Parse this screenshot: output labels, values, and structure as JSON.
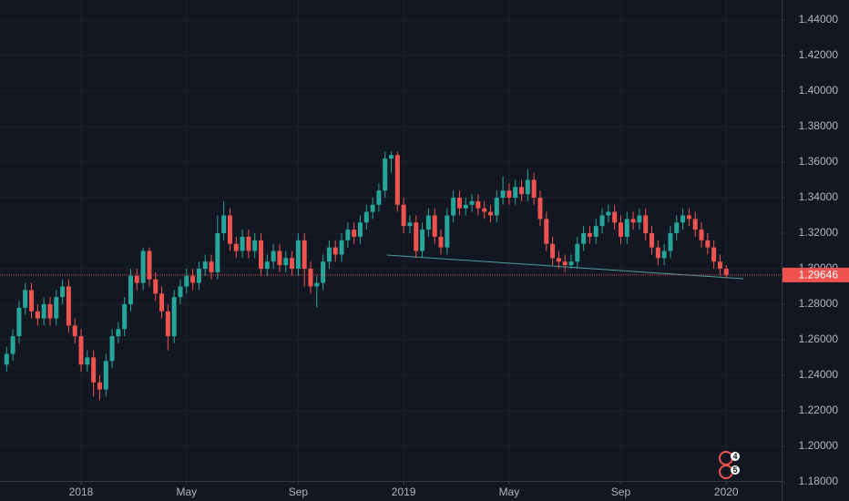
{
  "chart_data": {
    "type": "candlestick",
    "categories": [
      null,
      null,
      null,
      null,
      null,
      null,
      null,
      null,
      null,
      null,
      null,
      null,
      "2018",
      null,
      null,
      null,
      null,
      null,
      null,
      null,
      null,
      null,
      null,
      null,
      null,
      null,
      null,
      null,
      null,
      "May",
      null,
      null,
      null,
      null,
      null,
      null,
      null,
      null,
      null,
      null,
      null,
      null,
      null,
      null,
      null,
      null,
      null,
      "Sep",
      null,
      null,
      null,
      null,
      null,
      null,
      null,
      null,
      null,
      null,
      null,
      null,
      null,
      null,
      null,
      null,
      "2019",
      null,
      null,
      null,
      null,
      null,
      null,
      null,
      null,
      null,
      null,
      null,
      null,
      null,
      null,
      null,
      null,
      "May",
      null,
      null,
      null,
      null,
      null,
      null,
      null,
      null,
      null,
      null,
      null,
      null,
      null,
      null,
      null,
      null,
      null,
      "Sep",
      null,
      null,
      null,
      null,
      null,
      null,
      null,
      null,
      null,
      null,
      null,
      null,
      null,
      null,
      null,
      null,
      "2020"
    ],
    "open": [
      1.246,
      1.252,
      1.262,
      1.278,
      1.288,
      1.276,
      1.272,
      1.28,
      1.272,
      1.284,
      1.29,
      1.268,
      1.262,
      1.246,
      1.25,
      1.236,
      1.232,
      1.248,
      1.262,
      1.266,
      1.28,
      1.296,
      1.292,
      1.31,
      1.294,
      1.286,
      1.276,
      1.262,
      1.284,
      1.29,
      1.296,
      1.292,
      1.3,
      1.304,
      1.298,
      1.32,
      1.33,
      1.314,
      1.31,
      1.318,
      1.31,
      1.316,
      1.3,
      1.304,
      1.31,
      1.302,
      1.306,
      1.3,
      1.316,
      1.3,
      1.29,
      1.292,
      1.304,
      1.312,
      1.308,
      1.316,
      1.322,
      1.318,
      1.326,
      1.332,
      1.336,
      1.344,
      1.362,
      1.364,
      1.336,
      1.324,
      1.326,
      1.31,
      1.322,
      1.33,
      1.318,
      1.312,
      1.33,
      1.34,
      1.334,
      1.336,
      1.338,
      1.334,
      1.332,
      1.33,
      1.34,
      1.344,
      1.34,
      1.346,
      1.342,
      1.35,
      1.34,
      1.328,
      1.314,
      1.306,
      1.304,
      1.302,
      1.304,
      1.314,
      1.32,
      1.318,
      1.324,
      1.33,
      1.332,
      1.326,
      1.318,
      1.328,
      1.326,
      1.33,
      1.32,
      1.312,
      1.306,
      1.31,
      1.32,
      1.326,
      1.33,
      1.328,
      1.322,
      1.316,
      1.312,
      1.304,
      1.3
    ],
    "high": [
      1.256,
      1.266,
      1.282,
      1.292,
      1.292,
      1.28,
      1.284,
      1.284,
      1.288,
      1.294,
      1.294,
      1.272,
      1.266,
      1.254,
      1.254,
      1.24,
      1.252,
      1.266,
      1.27,
      1.284,
      1.3,
      1.3,
      1.312,
      1.312,
      1.298,
      1.29,
      1.28,
      1.288,
      1.294,
      1.3,
      1.3,
      1.304,
      1.308,
      1.308,
      1.33,
      1.338,
      1.334,
      1.318,
      1.322,
      1.322,
      1.32,
      1.32,
      1.308,
      1.314,
      1.314,
      1.31,
      1.31,
      1.32,
      1.32,
      1.304,
      1.296,
      1.308,
      1.316,
      1.316,
      1.32,
      1.326,
      1.326,
      1.33,
      1.336,
      1.34,
      1.348,
      1.366,
      1.366,
      1.366,
      1.34,
      1.33,
      1.33,
      1.326,
      1.334,
      1.334,
      1.322,
      1.334,
      1.344,
      1.344,
      1.34,
      1.342,
      1.342,
      1.338,
      1.336,
      1.344,
      1.352,
      1.348,
      1.35,
      1.35,
      1.356,
      1.354,
      1.344,
      1.332,
      1.318,
      1.31,
      1.308,
      1.308,
      1.318,
      1.324,
      1.324,
      1.328,
      1.334,
      1.336,
      1.336,
      1.33,
      1.332,
      1.332,
      1.334,
      1.334,
      1.324,
      1.316,
      1.314,
      1.324,
      1.33,
      1.334,
      1.334,
      1.332,
      1.326,
      1.32,
      1.316,
      1.308,
      1.302
    ],
    "low": [
      1.242,
      1.248,
      1.258,
      1.274,
      1.272,
      1.268,
      1.268,
      1.268,
      1.268,
      1.28,
      1.264,
      1.258,
      1.242,
      1.242,
      1.228,
      1.226,
      1.228,
      1.244,
      1.258,
      1.262,
      1.276,
      1.288,
      1.288,
      1.29,
      1.282,
      1.272,
      1.254,
      1.258,
      1.28,
      1.286,
      1.288,
      1.288,
      1.296,
      1.294,
      1.294,
      1.316,
      1.31,
      1.306,
      1.306,
      1.306,
      1.306,
      1.296,
      1.296,
      1.3,
      1.298,
      1.298,
      1.296,
      1.296,
      1.29,
      1.286,
      1.278,
      1.288,
      1.3,
      1.304,
      1.304,
      1.312,
      1.314,
      1.314,
      1.322,
      1.328,
      1.332,
      1.34,
      1.354,
      1.332,
      1.32,
      1.32,
      1.306,
      1.306,
      1.318,
      1.314,
      1.308,
      1.308,
      1.326,
      1.33,
      1.33,
      1.332,
      1.33,
      1.328,
      1.326,
      1.326,
      1.336,
      1.336,
      1.336,
      1.338,
      1.338,
      1.336,
      1.324,
      1.31,
      1.302,
      1.3,
      1.298,
      1.3,
      1.3,
      1.31,
      1.314,
      1.314,
      1.32,
      1.326,
      1.322,
      1.314,
      1.314,
      1.322,
      1.322,
      1.316,
      1.308,
      1.302,
      1.302,
      1.306,
      1.316,
      1.322,
      1.324,
      1.318,
      1.312,
      1.308,
      1.3,
      1.296,
      1.2945
    ],
    "close": [
      1.252,
      1.262,
      1.278,
      1.288,
      1.276,
      1.272,
      1.28,
      1.272,
      1.284,
      1.29,
      1.268,
      1.262,
      1.246,
      1.25,
      1.236,
      1.232,
      1.248,
      1.262,
      1.266,
      1.28,
      1.296,
      1.292,
      1.31,
      1.294,
      1.286,
      1.276,
      1.262,
      1.284,
      1.29,
      1.296,
      1.292,
      1.3,
      1.304,
      1.298,
      1.32,
      1.33,
      1.314,
      1.31,
      1.318,
      1.31,
      1.316,
      1.3,
      1.304,
      1.31,
      1.302,
      1.306,
      1.3,
      1.316,
      1.3,
      1.29,
      1.292,
      1.304,
      1.312,
      1.308,
      1.316,
      1.322,
      1.318,
      1.326,
      1.332,
      1.336,
      1.344,
      1.362,
      1.364,
      1.336,
      1.324,
      1.326,
      1.31,
      1.322,
      1.33,
      1.318,
      1.312,
      1.33,
      1.34,
      1.334,
      1.336,
      1.338,
      1.334,
      1.332,
      1.33,
      1.34,
      1.344,
      1.34,
      1.346,
      1.342,
      1.35,
      1.34,
      1.328,
      1.314,
      1.306,
      1.304,
      1.302,
      1.304,
      1.314,
      1.32,
      1.318,
      1.324,
      1.33,
      1.332,
      1.326,
      1.318,
      1.328,
      1.326,
      1.33,
      1.32,
      1.312,
      1.306,
      1.31,
      1.32,
      1.326,
      1.33,
      1.328,
      1.322,
      1.316,
      1.312,
      1.304,
      1.3,
      1.2965
    ],
    "up_color": "#26a69a",
    "down_color": "#ef5350",
    "ylim": [
      1.1692,
      1.4513
    ],
    "yticks": [
      {
        "value": 1.18,
        "label": "1.18000"
      },
      {
        "value": 1.2,
        "label": "1.20000"
      },
      {
        "value": 1.22,
        "label": "1.22000"
      },
      {
        "value": 1.24,
        "label": "1.24000"
      },
      {
        "value": 1.26,
        "label": "1.26000"
      },
      {
        "value": 1.28,
        "label": "1.28000"
      },
      {
        "value": 1.3,
        "label": "1.30000"
      },
      {
        "value": 1.32,
        "label": "1.32000"
      },
      {
        "value": 1.34,
        "label": "1.34000"
      },
      {
        "value": 1.36,
        "label": "1.36000"
      },
      {
        "value": 1.38,
        "label": "1.38000"
      },
      {
        "value": 1.4,
        "label": "1.40000"
      },
      {
        "value": 1.42,
        "label": "1.42000"
      },
      {
        "value": 1.44,
        "label": "1.44000"
      }
    ],
    "last_price": 1.29646,
    "grid": true,
    "annotations": [
      "4",
      "5"
    ]
  }
}
